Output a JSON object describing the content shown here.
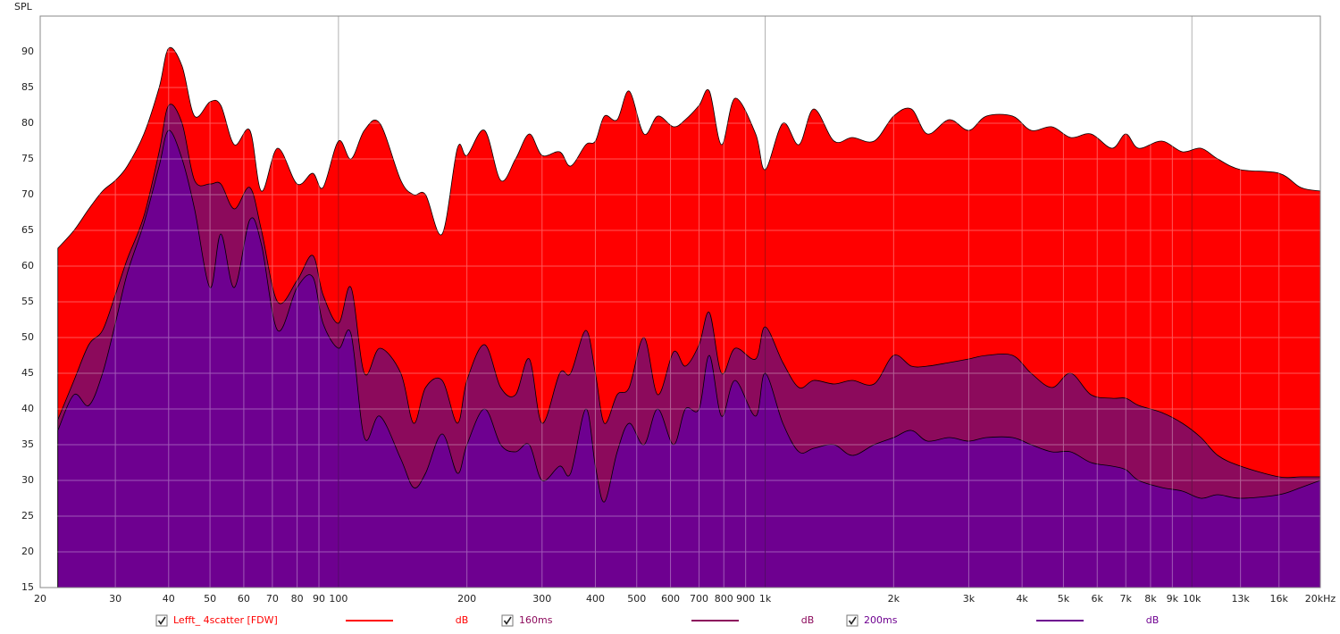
{
  "chart_data": {
    "type": "area",
    "y_label": "SPL",
    "log_x": true,
    "grid": true,
    "xlim": [
      20,
      20000
    ],
    "ylim": [
      15,
      95
    ],
    "yticks": [
      15,
      20,
      25,
      30,
      35,
      40,
      45,
      50,
      55,
      60,
      65,
      70,
      75,
      80,
      85,
      90
    ],
    "xticks": [
      20,
      30,
      40,
      50,
      60,
      70,
      80,
      90,
      100,
      200,
      300,
      400,
      500,
      600,
      700,
      800,
      900,
      {
        "value": 1000,
        "label": "1k"
      },
      {
        "value": 2000,
        "label": "2k"
      },
      {
        "value": 3000,
        "label": "3k"
      },
      {
        "value": 4000,
        "label": "4k"
      },
      {
        "value": 5000,
        "label": "5k"
      },
      {
        "value": 6000,
        "label": "6k"
      },
      {
        "value": 7000,
        "label": "7k"
      },
      {
        "value": 8000,
        "label": "8k"
      },
      {
        "value": 9000,
        "label": "9k"
      },
      {
        "value": 10000,
        "label": "10k"
      },
      {
        "value": 13000,
        "label": "13k"
      },
      {
        "value": 16000,
        "label": "16k"
      },
      {
        "value": 20000,
        "label": "20kHz"
      }
    ],
    "x": [
      22,
      24,
      26,
      28,
      30,
      32,
      35,
      38,
      40,
      43,
      46,
      50,
      53,
      57,
      62,
      66,
      72,
      80,
      87,
      92,
      100,
      107,
      115,
      125,
      140,
      150,
      160,
      175,
      190,
      200,
      220,
      240,
      260,
      280,
      300,
      330,
      350,
      380,
      400,
      420,
      450,
      480,
      520,
      560,
      610,
      650,
      700,
      740,
      790,
      850,
      950,
      1000,
      1100,
      1200,
      1300,
      1450,
      1600,
      1800,
      2000,
      2200,
      2400,
      2700,
      3000,
      3300,
      3800,
      4200,
      4700,
      5200,
      5800,
      6500,
      7000,
      7500,
      8500,
      9500,
      10500,
      11500,
      13000,
      16000,
      18000,
      20000
    ],
    "series": [
      {
        "name": "Lefft_ 4scatter [FDW]",
        "unit": "dB",
        "color": "#ff0000",
        "values": [
          62.5,
          65,
          68,
          70.5,
          72,
          74,
          78.5,
          85,
          90.5,
          88,
          81,
          83,
          82.5,
          77,
          79,
          70.5,
          76.5,
          71.5,
          73,
          71,
          77.5,
          75,
          79,
          80,
          72,
          70,
          70,
          64.5,
          76.5,
          75.5,
          79,
          72,
          75,
          78.5,
          75.5,
          76,
          74,
          77,
          77.5,
          81,
          80.5,
          84.5,
          78.5,
          81,
          79.5,
          80.5,
          82.5,
          84.5,
          77,
          83.5,
          78.5,
          73.5,
          80,
          77,
          82,
          77.5,
          78,
          77.5,
          81,
          82,
          78.5,
          80.5,
          79,
          81,
          81,
          79,
          79.5,
          78,
          78.5,
          76.5,
          78.5,
          76.5,
          77.5,
          76,
          76.5,
          75,
          73.5,
          73,
          71,
          70.5
        ]
      },
      {
        "name": "160ms",
        "unit": "dB",
        "color": "#8c0a5c",
        "values": [
          38.5,
          44,
          49,
          51,
          56,
          61,
          67,
          76,
          82.5,
          80,
          72,
          71.5,
          71.5,
          68,
          71,
          65,
          55,
          58,
          61.5,
          56,
          52,
          57,
          45,
          48.5,
          45,
          38,
          43,
          44,
          38,
          44,
          49,
          43,
          42,
          47,
          38,
          45,
          45,
          51,
          45,
          38,
          42,
          43,
          50,
          42,
          48,
          46,
          49,
          53.5,
          45,
          48.5,
          47,
          51.5,
          46.5,
          43,
          44,
          43.5,
          44,
          43.5,
          47.5,
          46,
          46,
          46.5,
          47,
          47.5,
          47.5,
          45,
          43,
          45,
          42,
          41.5,
          41.5,
          40.5,
          39.5,
          38,
          36,
          33.5,
          32,
          30.5,
          30.5,
          30.5
        ]
      },
      {
        "name": "200ms",
        "unit": "dB",
        "color": "#6e0090",
        "values": [
          37,
          42,
          40.5,
          45,
          52,
          59,
          66,
          74,
          79,
          75,
          68,
          57,
          64.5,
          57,
          66.5,
          63,
          51,
          57,
          58.5,
          52,
          48.5,
          50.5,
          36,
          39,
          33,
          29,
          31,
          36.5,
          31,
          35,
          40,
          35,
          34,
          35,
          30,
          32,
          31,
          40,
          32,
          27,
          34,
          38,
          35,
          40,
          35,
          40,
          40,
          47.5,
          39,
          44,
          39,
          45,
          38,
          34,
          34.5,
          35,
          33.5,
          35,
          36,
          37,
          35.5,
          36,
          35.5,
          36,
          36,
          35,
          34,
          34,
          32.5,
          32,
          31.5,
          30,
          29,
          28.5,
          27.5,
          28,
          27.5,
          28,
          29,
          30
        ]
      }
    ]
  }
}
